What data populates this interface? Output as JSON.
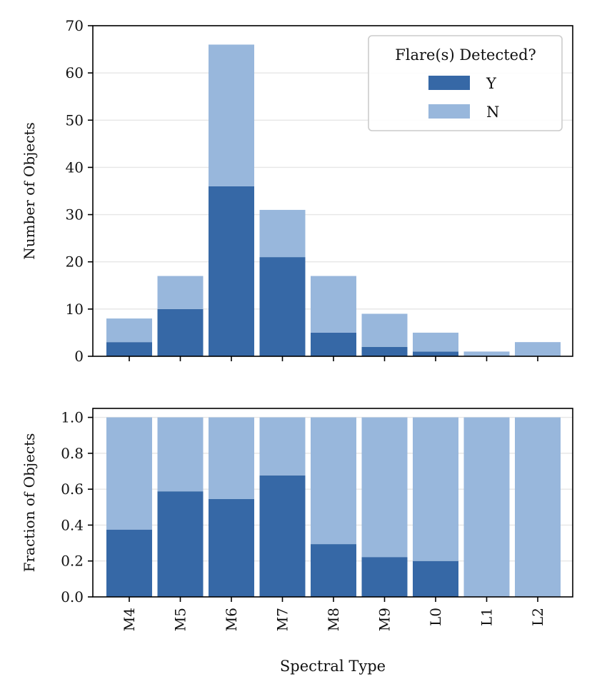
{
  "chart_data": [
    {
      "type": "bar",
      "stacked": true,
      "categories": [
        "M4",
        "M5",
        "M6",
        "M7",
        "M8",
        "M9",
        "L0",
        "L1",
        "L2"
      ],
      "series": [
        {
          "name": "Y",
          "color": "#3668a6",
          "values": [
            3,
            10,
            36,
            21,
            5,
            2,
            1,
            0,
            0
          ]
        },
        {
          "name": "N",
          "color": "#98b7dc",
          "values": [
            5,
            7,
            30,
            10,
            12,
            7,
            4,
            1,
            3
          ]
        }
      ],
      "ylabel": "Number of Objects",
      "ylim": [
        0,
        70
      ],
      "yticks": [
        0,
        10,
        20,
        30,
        40,
        50,
        60,
        70
      ],
      "ytick_labels": [
        "0",
        "10",
        "20",
        "30",
        "40",
        "50",
        "60",
        "70"
      ],
      "grid": "horizontal",
      "legend": {
        "title": "Flare(s) Detected?",
        "placement": "top-right",
        "entries": [
          "Y",
          "N"
        ]
      }
    },
    {
      "type": "bar",
      "stacked": true,
      "categories": [
        "M4",
        "M5",
        "M6",
        "M7",
        "M8",
        "M9",
        "L0",
        "L1",
        "L2"
      ],
      "series": [
        {
          "name": "Y",
          "color": "#3668a6",
          "values": [
            0.375,
            0.588,
            0.545,
            0.677,
            0.294,
            0.222,
            0.2,
            0.0,
            0.0
          ]
        },
        {
          "name": "N",
          "color": "#98b7dc",
          "values": [
            0.625,
            0.412,
            0.455,
            0.323,
            0.706,
            0.778,
            0.8,
            1.0,
            1.0
          ]
        }
      ],
      "xlabel": "Spectral Type",
      "ylabel": "Fraction of Objects",
      "ylim": [
        0,
        1.05
      ],
      "yticks": [
        0,
        0.2,
        0.4,
        0.6,
        0.8,
        1.0
      ],
      "ytick_labels": [
        "0.0",
        "0.2",
        "0.4",
        "0.6",
        "0.8",
        "1.0"
      ],
      "grid": "horizontal"
    }
  ]
}
